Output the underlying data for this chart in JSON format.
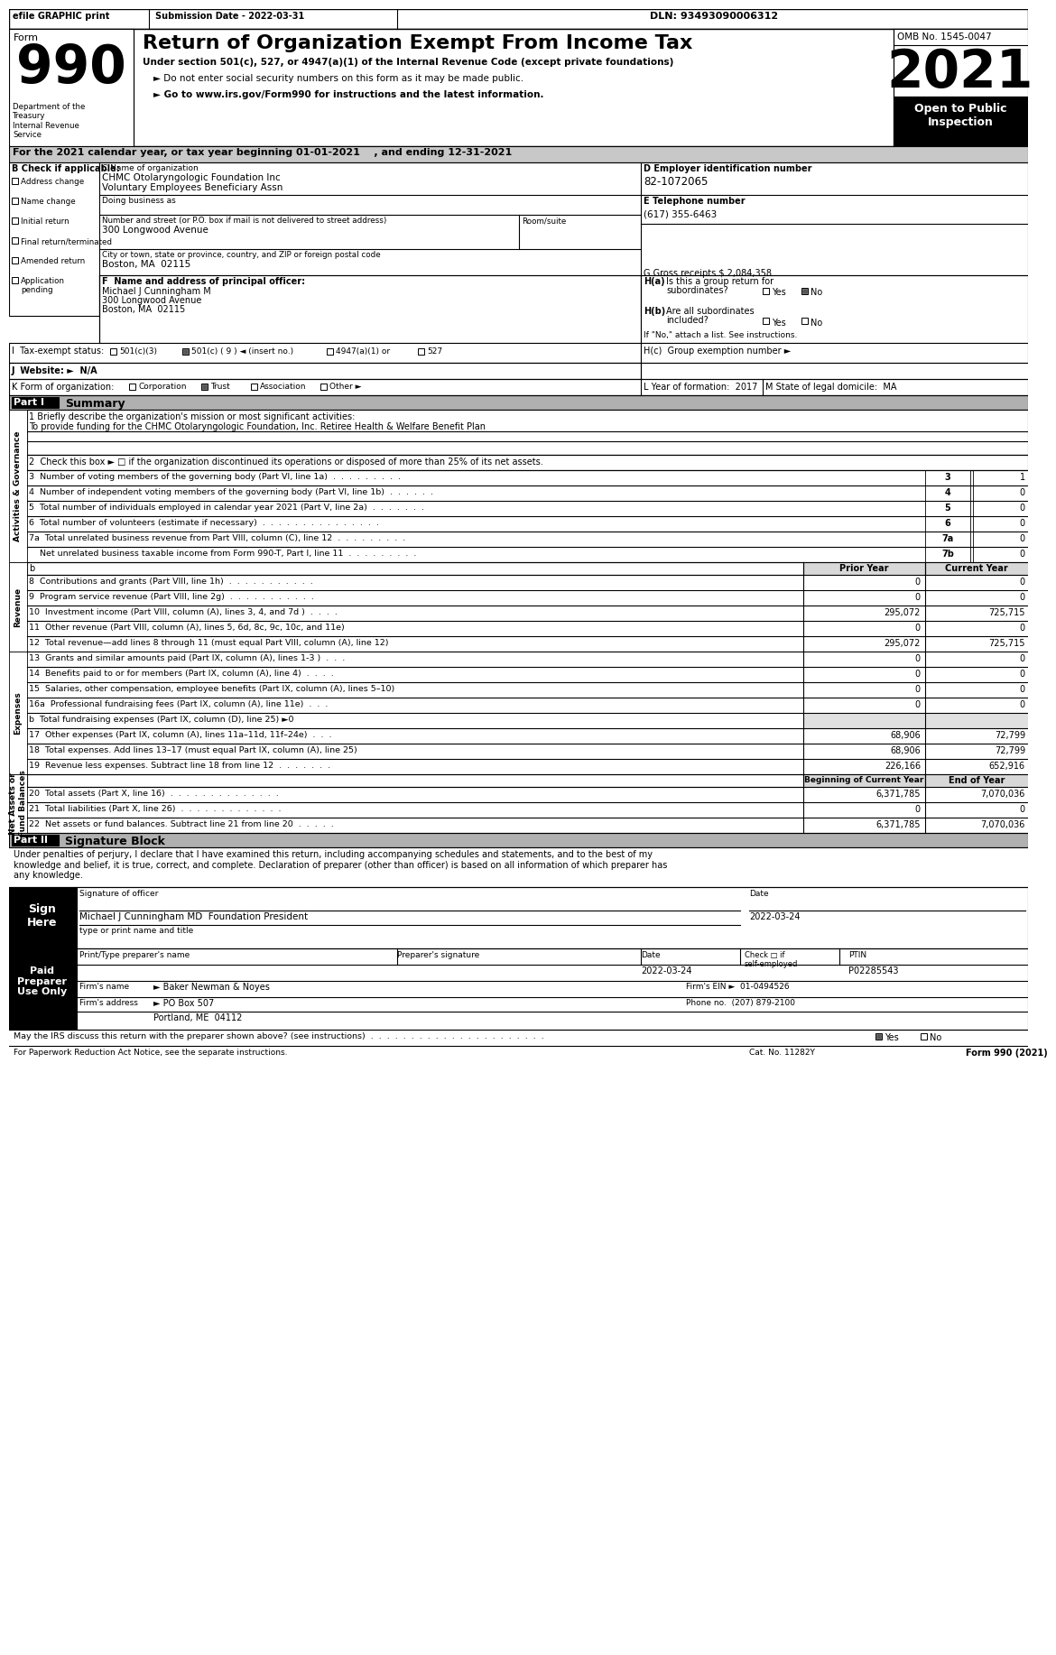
{
  "header_top": "efile GRAPHIC print",
  "submission_date": "Submission Date - 2022-03-31",
  "dln": "DLN: 93493090006312",
  "form_number": "990",
  "form_label": "Form",
  "title": "Return of Organization Exempt From Income Tax",
  "subtitle1": "Under section 501(c), 527, or 4947(a)(1) of the Internal Revenue Code (except private foundations)",
  "subtitle2": "► Do not enter social security numbers on this form as it may be made public.",
  "subtitle3": "► Go to www.irs.gov/Form990 for instructions and the latest information.",
  "dept_label": "Department of the\nTreasury\nInternal Revenue\nService",
  "omb": "OMB No. 1545-0047",
  "year": "2021",
  "open_public": "Open to Public\nInspection",
  "tax_year_line": "For the 2021 calendar year, or tax year beginning 01-01-2021    , and ending 12-31-2021",
  "b_label": "B Check if applicable:",
  "check_items": [
    "Address change",
    "Name change",
    "Initial return",
    "Final return/terminated",
    "Amended return",
    "Application\npending"
  ],
  "c_label": "C Name of organization",
  "org_name1": "CHMC Otolaryngologic Foundation Inc",
  "org_name2": "Voluntary Employees Beneficiary Assn",
  "dba_label": "Doing business as",
  "address_label": "Number and street (or P.O. box if mail is not delivered to street address)",
  "address_value": "300 Longwood Avenue",
  "room_label": "Room/suite",
  "city_label": "City or town, state or province, country, and ZIP or foreign postal code",
  "city_value": "Boston, MA  02115",
  "d_label": "D Employer identification number",
  "ein": "82-1072065",
  "e_label": "E Telephone number",
  "phone": "(617) 355-6463",
  "g_label": "G Gross receipts $",
  "gross_receipts": "2,084,358",
  "f_label": "F  Name and address of principal officer:",
  "officer_name": "Michael J Cunningham M",
  "officer_addr1": "300 Longwood Avenue",
  "officer_addr2": "Boston, MA  02115",
  "ha_label": "H(a)",
  "ha_text": "Is this a group return for\nsubordinates?",
  "ha_yes": "Yes",
  "ha_no": "No",
  "hb_label": "H(b)",
  "hb_text": "Are all subordinates\nincluded?",
  "hb_yes": "Yes",
  "hb_no": "No",
  "hb_note": "If \"No,\" attach a list. See instructions.",
  "hc_label": "H(c)",
  "hc_text": "Group exemption number ►",
  "i_label": "I  Tax-exempt status:",
  "tax_501c3": "501(c)(3)",
  "tax_501c9": "501(c) ( 9 ) ◄ (insert no.)",
  "tax_4947": "4947(a)(1) or",
  "tax_527": "527",
  "j_label": "J  Website: ►",
  "website": "N/A",
  "k_label": "K Form of organization:",
  "k_corp": "Corporation",
  "k_trust": "Trust",
  "k_assoc": "Association",
  "k_other": "Other ►",
  "l_label": "L Year of formation:",
  "l_year": "2017",
  "m_label": "M State of legal domicile:",
  "m_state": "MA",
  "part1_label": "Part I",
  "part1_title": "Summary",
  "line1_label": "1 Briefly describe the organization's mission or most significant activities:",
  "line1_value": "To provide funding for the CHMC Otolaryngologic Foundation, Inc. Retiree Health & Welfare Benefit Plan",
  "line2": "2  Check this box ► □ if the organization discontinued its operations or disposed of more than 25% of its net assets.",
  "line3": "3  Number of voting members of the governing body (Part VI, line 1a)  .  .  .  .  .  .  .  .  .",
  "line3_num": "3",
  "line3_val": "1",
  "line4": "4  Number of independent voting members of the governing body (Part VI, line 1b)  .  .  .  .  .  .",
  "line4_num": "4",
  "line4_val": "0",
  "line5": "5  Total number of individuals employed in calendar year 2021 (Part V, line 2a)  .  .  .  .  .  .  .",
  "line5_num": "5",
  "line5_val": "0",
  "line6": "6  Total number of volunteers (estimate if necessary)  .  .  .  .  .  .  .  .  .  .  .  .  .  .  .",
  "line6_num": "6",
  "line6_val": "0",
  "line7a": "7a  Total unrelated business revenue from Part VIII, column (C), line 12  .  .  .  .  .  .  .  .  .",
  "line7a_num": "7a",
  "line7a_val": "0",
  "line7b": "    Net unrelated business taxable income from Form 990-T, Part I, line 11  .  .  .  .  .  .  .  .  .",
  "line7b_num": "7b",
  "line7b_val": "0",
  "col_prior": "Prior Year",
  "col_current": "Current Year",
  "line8": "8  Contributions and grants (Part VIII, line 1h)  .  .  .  .  .  .  .  .  .  .  .",
  "line8_prior": "0",
  "line8_curr": "0",
  "line9": "9  Program service revenue (Part VIII, line 2g)  .  .  .  .  .  .  .  .  .  .  .",
  "line9_prior": "0",
  "line9_curr": "0",
  "line10": "10  Investment income (Part VIII, column (A), lines 3, 4, and 7d )  .  .  .  .",
  "line10_prior": "295,072",
  "line10_curr": "725,715",
  "line11": "11  Other revenue (Part VIII, column (A), lines 5, 6d, 8c, 9c, 10c, and 11e)",
  "line11_prior": "0",
  "line11_curr": "0",
  "line12": "12  Total revenue—add lines 8 through 11 (must equal Part VIII, column (A), line 12)",
  "line12_prior": "295,072",
  "line12_curr": "725,715",
  "line13": "13  Grants and similar amounts paid (Part IX, column (A), lines 1-3 )  .  .  .",
  "line13_prior": "0",
  "line13_curr": "0",
  "line14": "14  Benefits paid to or for members (Part IX, column (A), line 4)  .  .  .  .",
  "line14_prior": "0",
  "line14_curr": "0",
  "line15": "15  Salaries, other compensation, employee benefits (Part IX, column (A), lines 5–10)",
  "line15_prior": "0",
  "line15_curr": "0",
  "line16a": "16a  Professional fundraising fees (Part IX, column (A), line 11e)  .  .  .",
  "line16a_prior": "0",
  "line16a_curr": "0",
  "line16b": "b  Total fundraising expenses (Part IX, column (D), line 25) ►0",
  "line17": "17  Other expenses (Part IX, column (A), lines 11a–11d, 11f–24e)  .  .  .",
  "line17_prior": "68,906",
  "line17_curr": "72,799",
  "line18": "18  Total expenses. Add lines 13–17 (must equal Part IX, column (A), line 25)",
  "line18_prior": "68,906",
  "line18_curr": "72,799",
  "line19": "19  Revenue less expenses. Subtract line 18 from line 12  .  .  .  .  .  .  .",
  "line19_prior": "226,166",
  "line19_curr": "652,916",
  "col_begin": "Beginning of Current Year",
  "col_end": "End of Year",
  "line20": "20  Total assets (Part X, line 16)  .  .  .  .  .  .  .  .  .  .  .  .  .  .",
  "line20_begin": "6,371,785",
  "line20_end": "7,070,036",
  "line21": "21  Total liabilities (Part X, line 26)  .  .  .  .  .  .  .  .  .  .  .  .  .",
  "line21_begin": "0",
  "line21_end": "0",
  "line22": "22  Net assets or fund balances. Subtract line 21 from line 20  .  .  .  .  .",
  "line22_begin": "6,371,785",
  "line22_end": "7,070,036",
  "part2_label": "Part II",
  "part2_title": "Signature Block",
  "sig_declaration": "Under penalties of perjury, I declare that I have examined this return, including accompanying schedules and statements, and to the best of my\nknowledge and belief, it is true, correct, and complete. Declaration of preparer (other than officer) is based on all information of which preparer has\nany knowledge.",
  "sig_date": "2022-03-24",
  "sig_label": "Signature of officer",
  "sig_date_label": "Date",
  "sig_name": "Michael J Cunningham MD  Foundation President",
  "sig_name_label": "type or print name and title",
  "preparer_name_label": "Print/Type preparer's name",
  "preparer_sig_label": "Preparer's signature",
  "preparer_date_label": "Date",
  "preparer_check_label": "Check □ if\nself-employed",
  "preparer_ptin_label": "PTIN",
  "preparer_ptin": "P02285543",
  "preparer_date": "2022-03-24",
  "firm_name_label": "Firm's name",
  "firm_name": "► Baker Newman & Noyes",
  "firm_ein_label": "Firm's EIN ►",
  "firm_ein": "01-0494526",
  "firm_addr_label": "Firm's address",
  "firm_addr": "► PO Box 507",
  "firm_city": "Portland, ME  04112",
  "phone_label": "Phone no.",
  "phone_no": "(207) 879-2100",
  "irs_discuss": "May the IRS discuss this return with the preparer shown above? (see instructions)  .  .  .  .  .  .  .  .  .  .  .  .  .  .  .  .  .  .  .  .  .  .",
  "irs_yes": "Yes",
  "irs_no": "No",
  "cat_label": "Cat. No. 11282Y",
  "form_footer": "Form 990 (2021)",
  "sign_here": "Sign\nHere",
  "paid_preparer": "Paid\nPreparer\nUse Only",
  "sidebar_labels": [
    "Activities & Governance",
    "Revenue",
    "Expenses",
    "Net Assets or\nFund Balances"
  ]
}
